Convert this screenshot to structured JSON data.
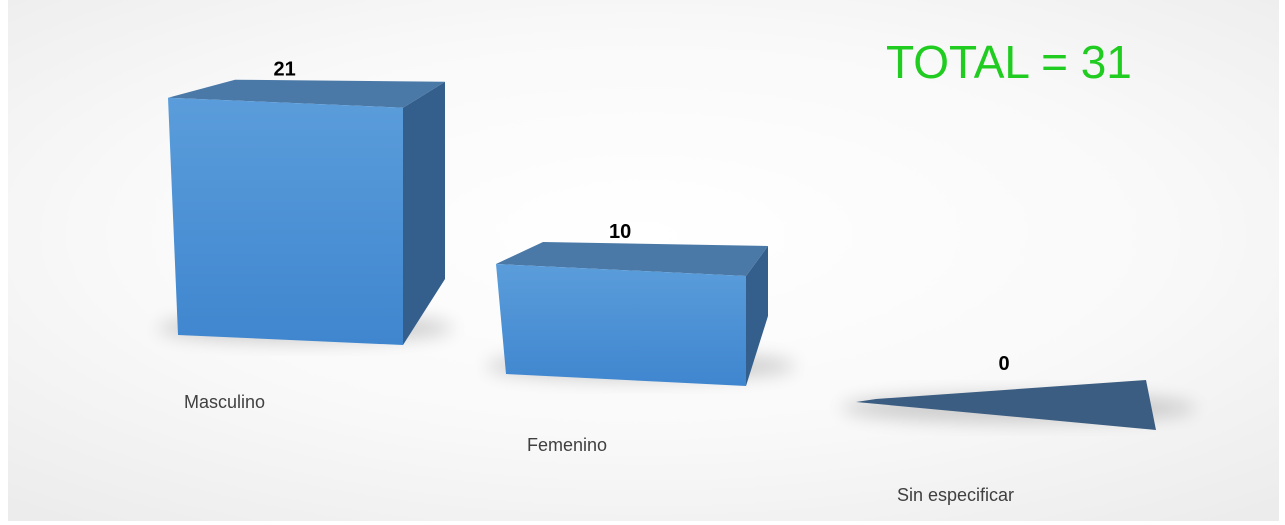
{
  "chart_data": {
    "type": "bar",
    "style": "3d",
    "categories": [
      "Masculino",
      "Femenino",
      "Sin especificar"
    ],
    "values": [
      21,
      10,
      0
    ],
    "ylim": [
      0,
      21
    ],
    "grid": false,
    "legend": "none",
    "annotations": [
      {
        "text": "TOTAL = 31",
        "color": "#1fcc1f"
      }
    ]
  },
  "colors": {
    "bar_front_top": "#5b9ddb",
    "bar_front_bottom": "#3f86cf",
    "bar_top": "#4a79a8",
    "bar_side": "#345f8c",
    "floor_slab": "#3b5d82",
    "total_text": "#1fcc1f"
  }
}
